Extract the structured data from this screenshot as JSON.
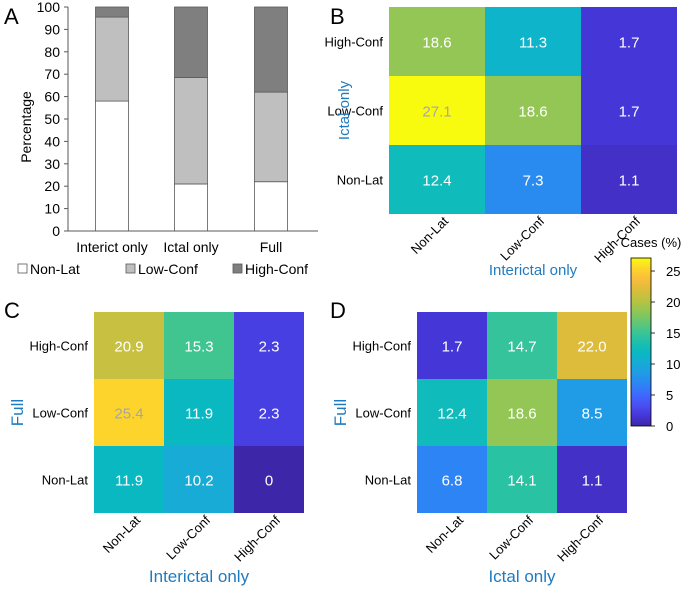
{
  "panel_letters": [
    "A",
    "B",
    "C",
    "D"
  ],
  "chart_data": [
    {
      "panel": "A",
      "type": "bar",
      "stacked": true,
      "categories": [
        "Interict only",
        "Ictal only",
        "Full"
      ],
      "series": [
        {
          "name": "Non-Lat",
          "values": [
            58,
            21,
            22
          ],
          "color": "#ffffff"
        },
        {
          "name": "Low-Conf",
          "values": [
            37.5,
            47.5,
            40
          ],
          "color": "#bfbfbf"
        },
        {
          "name": "High-Conf",
          "values": [
            4.5,
            31.5,
            38
          ],
          "color": "#7f7f7f"
        }
      ],
      "ylabel": "Percentage",
      "ylim": [
        0,
        100
      ],
      "yticks": [
        0,
        10,
        20,
        30,
        40,
        50,
        60,
        70,
        80,
        90,
        100
      ],
      "legend_position": "bottom"
    },
    {
      "panel": "B",
      "type": "heatmap",
      "row_labels": [
        "High-Conf",
        "Low-Conf",
        "Non-Lat"
      ],
      "col_labels": [
        "Non-Lat",
        "Low-Conf",
        "High-Conf"
      ],
      "values": [
        [
          "18.6",
          "11.3",
          "1.7"
        ],
        [
          "27.1",
          "18.6",
          "1.7"
        ],
        [
          "12.4",
          "7.3",
          "1.1"
        ]
      ],
      "xlabel": "Interictal only",
      "ylabel": "Ictal only"
    },
    {
      "panel": "C",
      "type": "heatmap",
      "row_labels": [
        "High-Conf",
        "Low-Conf",
        "Non-Lat"
      ],
      "col_labels": [
        "Non-Lat",
        "Low-Conf",
        "High-Conf"
      ],
      "values": [
        [
          "20.9",
          "15.3",
          "2.3"
        ],
        [
          "25.4",
          "11.9",
          "2.3"
        ],
        [
          "11.9",
          "10.2",
          "0"
        ]
      ],
      "xlabel": "Interictal only",
      "ylabel": "Full"
    },
    {
      "panel": "D",
      "type": "heatmap",
      "row_labels": [
        "High-Conf",
        "Low-Conf",
        "Non-Lat"
      ],
      "col_labels": [
        "Non-Lat",
        "Low-Conf",
        "High-Conf"
      ],
      "values": [
        [
          "1.7",
          "14.7",
          "22.0"
        ],
        [
          "12.4",
          "18.6",
          "8.5"
        ],
        [
          "6.8",
          "14.1",
          "1.1"
        ]
      ],
      "xlabel": "Ictal only",
      "ylabel": "Full"
    }
  ],
  "colorbar": {
    "title": "Cases (%)",
    "ticks": [
      0,
      5,
      10,
      15,
      20,
      25
    ],
    "range": [
      0,
      27.1
    ],
    "colormap": [
      "#3e26a8",
      "#4536d8",
      "#4b4ff4",
      "#3d6afd",
      "#2d84f4",
      "#209be5",
      "#17abd6",
      "#09b8c2",
      "#1ec0ab",
      "#3fc592",
      "#6ac66f",
      "#94c653",
      "#bbc242",
      "#ddbc3b",
      "#f9bd3b",
      "#fdd42c",
      "#f9fb0e"
    ]
  },
  "colors": {
    "axis_title_blue": "#1f7bbf",
    "dark_text": "#000000",
    "light_value_text": "#ffffff",
    "grey_value_text": "#a6a6a6"
  }
}
